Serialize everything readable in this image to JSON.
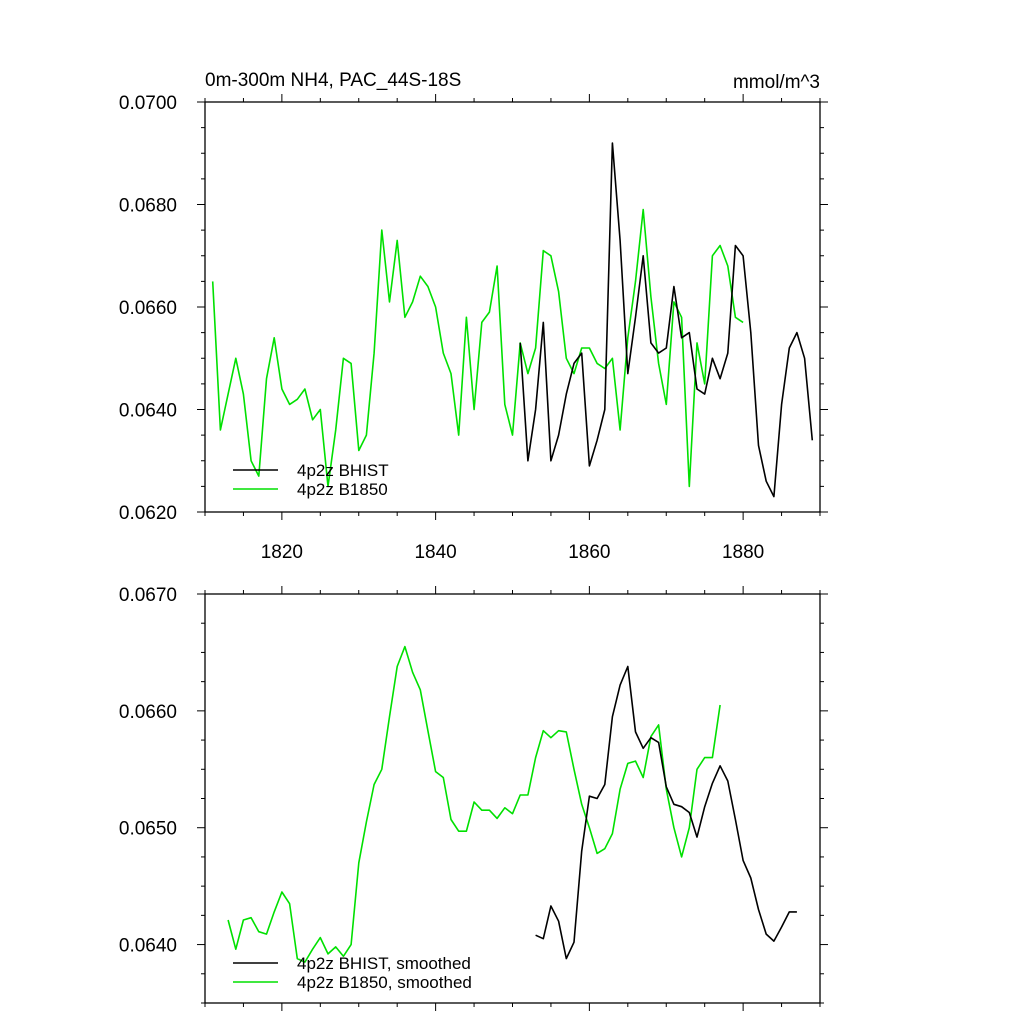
{
  "colors": {
    "bhist": "#000000",
    "b1850": "#00e000",
    "axes": "#000000",
    "background": "#ffffff"
  },
  "chart_data": [
    {
      "type": "line",
      "title": "0m-300m NH4, PAC_44S-18S",
      "units": "mmol/m^3",
      "xlim": [
        1810,
        1890
      ],
      "ylim": [
        0.062,
        0.07
      ],
      "x_ticks": [
        1820,
        1840,
        1860,
        1880
      ],
      "x_tick_labels": [
        "1820",
        "1840",
        "1860",
        "1880"
      ],
      "y_ticks": [
        0.062,
        0.064,
        0.066,
        0.068,
        0.07
      ],
      "y_tick_labels": [
        "0.0620",
        "0.0640",
        "0.0660",
        "0.0680",
        "0.0700"
      ],
      "legend_position": "bottom-left",
      "series": [
        {
          "name": "4p2z BHIST",
          "color": "#000000",
          "x": [
            1851,
            1852,
            1853,
            1854,
            1855,
            1856,
            1857,
            1858,
            1859,
            1860,
            1861,
            1862,
            1863,
            1864,
            1865,
            1866,
            1867,
            1868,
            1869,
            1870,
            1871,
            1872,
            1873,
            1874,
            1875,
            1876,
            1877,
            1878,
            1879,
            1880,
            1881,
            1882,
            1883,
            1884,
            1885,
            1886,
            1887,
            1888,
            1889
          ],
          "y": [
            0.0653,
            0.063,
            0.064,
            0.0657,
            0.063,
            0.0635,
            0.0643,
            0.0649,
            0.0651,
            0.0629,
            0.0634,
            0.064,
            0.0692,
            0.0673,
            0.0647,
            0.0658,
            0.067,
            0.0653,
            0.0651,
            0.0652,
            0.0664,
            0.0654,
            0.0655,
            0.0644,
            0.0643,
            0.065,
            0.0646,
            0.0651,
            0.0672,
            0.067,
            0.0655,
            0.0633,
            0.0626,
            0.0623,
            0.0641,
            0.0652,
            0.0655,
            0.065,
            0.0634
          ]
        },
        {
          "name": "4p2z B1850",
          "color": "#00e000",
          "x": [
            1811,
            1812,
            1813,
            1814,
            1815,
            1816,
            1817,
            1818,
            1819,
            1820,
            1821,
            1822,
            1823,
            1824,
            1825,
            1826,
            1827,
            1828,
            1829,
            1830,
            1831,
            1832,
            1833,
            1834,
            1835,
            1836,
            1837,
            1838,
            1839,
            1840,
            1841,
            1842,
            1843,
            1844,
            1845,
            1846,
            1847,
            1848,
            1849,
            1850,
            1851,
            1852,
            1853,
            1854,
            1855,
            1856,
            1857,
            1858,
            1859,
            1860,
            1861,
            1862,
            1863,
            1864,
            1865,
            1866,
            1867,
            1868,
            1869,
            1870,
            1871,
            1872,
            1873,
            1874,
            1875,
            1876,
            1877,
            1878,
            1879,
            1880
          ],
          "y": [
            0.0665,
            0.0636,
            0.0643,
            0.065,
            0.0643,
            0.063,
            0.0627,
            0.0646,
            0.0654,
            0.0644,
            0.0641,
            0.0642,
            0.0644,
            0.0638,
            0.064,
            0.0625,
            0.0636,
            0.065,
            0.0649,
            0.0632,
            0.0635,
            0.0651,
            0.0675,
            0.0661,
            0.0673,
            0.0658,
            0.0661,
            0.0666,
            0.0664,
            0.066,
            0.0651,
            0.0647,
            0.0635,
            0.0658,
            0.064,
            0.0657,
            0.0659,
            0.0668,
            0.0641,
            0.0635,
            0.0653,
            0.0647,
            0.0652,
            0.0671,
            0.067,
            0.0663,
            0.065,
            0.0647,
            0.0652,
            0.0652,
            0.0649,
            0.0648,
            0.065,
            0.0636,
            0.0654,
            0.0665,
            0.0679,
            0.0662,
            0.0649,
            0.0641,
            0.0661,
            0.0658,
            0.0625,
            0.0653,
            0.0645,
            0.067,
            0.0672,
            0.0668,
            0.0658,
            0.0657
          ]
        }
      ]
    },
    {
      "type": "line",
      "xlim": [
        1810,
        1890
      ],
      "ylim": [
        0.0635,
        0.067
      ],
      "x_ticks": [
        1820,
        1840,
        1860,
        1880
      ],
      "y_ticks": [
        0.064,
        0.065,
        0.066,
        0.067
      ],
      "y_tick_labels": [
        "0.0640",
        "0.0650",
        "0.0660",
        "0.0670"
      ],
      "legend_position": "bottom-left",
      "series": [
        {
          "name": "4p2z BHIST, smoothed",
          "color": "#000000",
          "x": [
            1853,
            1854,
            1855,
            1856,
            1857,
            1858,
            1859,
            1860,
            1861,
            1862,
            1863,
            1864,
            1865,
            1866,
            1867,
            1868,
            1869,
            1870,
            1871,
            1872,
            1873,
            1874,
            1875,
            1876,
            1877,
            1878,
            1879,
            1880,
            1881,
            1882,
            1883,
            1884,
            1885,
            1886,
            1887
          ],
          "y": [
            0.06408,
            0.06405,
            0.06433,
            0.0642,
            0.06388,
            0.06402,
            0.0648,
            0.06527,
            0.06525,
            0.06537,
            0.06595,
            0.06622,
            0.06638,
            0.06582,
            0.06568,
            0.06577,
            0.06573,
            0.06535,
            0.0652,
            0.06518,
            0.06513,
            0.06492,
            0.06518,
            0.06538,
            0.06553,
            0.0654,
            0.06507,
            0.06472,
            0.06457,
            0.0643,
            0.06409,
            0.06403,
            0.06415,
            0.06428,
            0.06428
          ]
        },
        {
          "name": "4p2z B1850, smoothed",
          "color": "#00e000",
          "x": [
            1813,
            1814,
            1815,
            1816,
            1817,
            1818,
            1819,
            1820,
            1821,
            1822,
            1823,
            1824,
            1825,
            1826,
            1827,
            1828,
            1829,
            1830,
            1831,
            1832,
            1833,
            1834,
            1835,
            1836,
            1837,
            1838,
            1839,
            1840,
            1841,
            1842,
            1843,
            1844,
            1845,
            1846,
            1847,
            1848,
            1849,
            1850,
            1851,
            1852,
            1853,
            1854,
            1855,
            1856,
            1857,
            1858,
            1859,
            1860,
            1861,
            1862,
            1863,
            1864,
            1865,
            1866,
            1867,
            1868,
            1869,
            1870,
            1871,
            1872,
            1873,
            1874,
            1875,
            1876,
            1877
          ],
          "y": [
            0.06421,
            0.06396,
            0.06421,
            0.06423,
            0.06411,
            0.06409,
            0.06428,
            0.06445,
            0.06435,
            0.06388,
            0.06385,
            0.06396,
            0.06406,
            0.06392,
            0.06398,
            0.0639,
            0.064,
            0.0647,
            0.06505,
            0.06537,
            0.0655,
            0.06595,
            0.06638,
            0.06655,
            0.06633,
            0.06618,
            0.06583,
            0.06548,
            0.06543,
            0.06507,
            0.06497,
            0.06497,
            0.06522,
            0.06515,
            0.06515,
            0.06508,
            0.06517,
            0.06512,
            0.06528,
            0.06528,
            0.0656,
            0.06583,
            0.06577,
            0.06583,
            0.06582,
            0.0655,
            0.0652,
            0.065,
            0.06478,
            0.06482,
            0.06495,
            0.06533,
            0.06555,
            0.06557,
            0.06543,
            0.06578,
            0.06588,
            0.06533,
            0.065,
            0.06475,
            0.065,
            0.0655,
            0.0656,
            0.0656,
            0.06605
          ]
        }
      ]
    }
  ]
}
